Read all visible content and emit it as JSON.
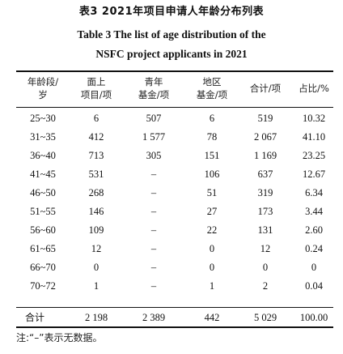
{
  "title": {
    "zh": "表3    2021年项目申请人年龄分布列表",
    "en_line1": "Table 3    The list of age distribution of the",
    "en_line2": "NSFC project applicants in 2021"
  },
  "columns": [
    {
      "line1": "年龄段/",
      "line2": "岁"
    },
    {
      "line1": "面上",
      "line2": "项目/项"
    },
    {
      "line1": "青年",
      "line2": "基金/项"
    },
    {
      "line1": "地区",
      "line2": "基金/项"
    },
    {
      "line1": "合计/项",
      "line2": ""
    },
    {
      "line1": "占比/%",
      "line2": ""
    }
  ],
  "rows": [
    [
      "25~30",
      "6",
      "507",
      "6",
      "519",
      "10.32"
    ],
    [
      "31~35",
      "412",
      "1 577",
      "78",
      "2 067",
      "41.10"
    ],
    [
      "36~40",
      "713",
      "305",
      "151",
      "1 169",
      "23.25"
    ],
    [
      "41~45",
      "531",
      "–",
      "106",
      "637",
      "12.67"
    ],
    [
      "46~50",
      "268",
      "–",
      "51",
      "319",
      "6.34"
    ],
    [
      "51~55",
      "146",
      "–",
      "27",
      "173",
      "3.44"
    ],
    [
      "56~60",
      "109",
      "–",
      "22",
      "131",
      "2.60"
    ],
    [
      "61~65",
      "12",
      "–",
      "0",
      "12",
      "0.24"
    ],
    [
      "66~70",
      "0",
      "–",
      "0",
      "0",
      "0"
    ],
    [
      "70~72",
      "1",
      "–",
      "1",
      "2",
      "0.04"
    ]
  ],
  "total": [
    "合计",
    "2 198",
    "2 389",
    "442",
    "5 029",
    "100.00"
  ],
  "note": "注:“–”表示无数据。"
}
